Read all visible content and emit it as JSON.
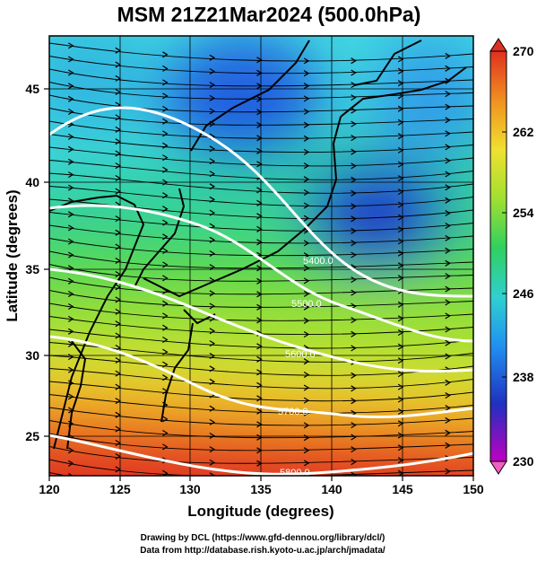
{
  "title": "MSM 21Z21Mar2024 (500.0hPa)",
  "x_axis": {
    "label": "Longitude (degrees)",
    "ticks": [
      "120",
      "125",
      "130",
      "135",
      "140",
      "145",
      "150"
    ],
    "range": [
      120,
      150
    ]
  },
  "y_axis": {
    "label": "Latitude  (degrees)",
    "ticks": [
      "25",
      "30",
      "35",
      "40",
      "45"
    ],
    "range": [
      22.4,
      47.6
    ]
  },
  "colorbar": {
    "ticks": [
      "270",
      "262",
      "254",
      "246",
      "238",
      "230"
    ],
    "range": [
      230,
      270
    ],
    "colors": [
      "#c000c0",
      "#2030c0",
      "#2090f0",
      "#30d0d0",
      "#30d060",
      "#a0e030",
      "#f0e030",
      "#f09020",
      "#e03020"
    ]
  },
  "contours": [
    {
      "label": "5400.0"
    },
    {
      "label": "5500.0"
    },
    {
      "label": "5600.0"
    },
    {
      "label": "5700.0"
    },
    {
      "label": "5800.0"
    }
  ],
  "credits": [
    "Drawing by DCL (https://www.gfd-dennou.org/library/dcl/)",
    "Data from http://database.rish.kyoto-u.ac.jp/arch/jmadata/"
  ],
  "chart_data": {
    "type": "heatmap",
    "title": "MSM 21Z21Mar2024 (500.0hPa)",
    "xlabel": "Longitude (degrees)",
    "ylabel": "Latitude  (degrees)",
    "xlim": [
      120,
      150
    ],
    "ylim": [
      22.4,
      47.6
    ],
    "color_range": [
      230,
      270
    ],
    "contour_levels": [
      5400,
      5500,
      5600,
      5700,
      5800
    ],
    "overlay": "wind streamlines"
  }
}
